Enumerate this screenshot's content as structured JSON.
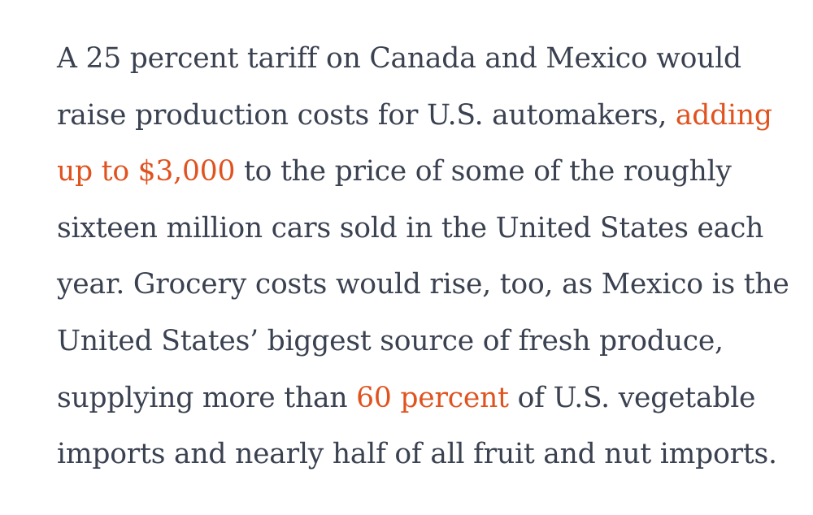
{
  "article": {
    "lines": [
      [
        {
          "text": "A 25 percent tariff on Canada and Mexico would"
        }
      ],
      [
        {
          "text": "raise production costs for U.S. automakers, "
        },
        {
          "text": "adding",
          "link": true
        }
      ],
      [
        {
          "text": "up to $3,000",
          "link": true
        },
        {
          "text": " to the price of some of the roughly"
        }
      ],
      [
        {
          "text": "sixteen million cars sold in the United States each"
        }
      ],
      [
        {
          "text": "year. Grocery costs would rise, too, as Mexico is the"
        }
      ],
      [
        {
          "text": "United States’ biggest source of fresh produce,"
        }
      ],
      [
        {
          "text": "supplying more than "
        },
        {
          "text": "60 percent",
          "link": true
        },
        {
          "text": " of U.S. vegetable"
        }
      ],
      [
        {
          "text": "imports and nearly half of all fruit and nut imports."
        }
      ]
    ]
  },
  "colors": {
    "text": "#3a4150",
    "link": "#e0531f",
    "background": "#ffffff"
  }
}
